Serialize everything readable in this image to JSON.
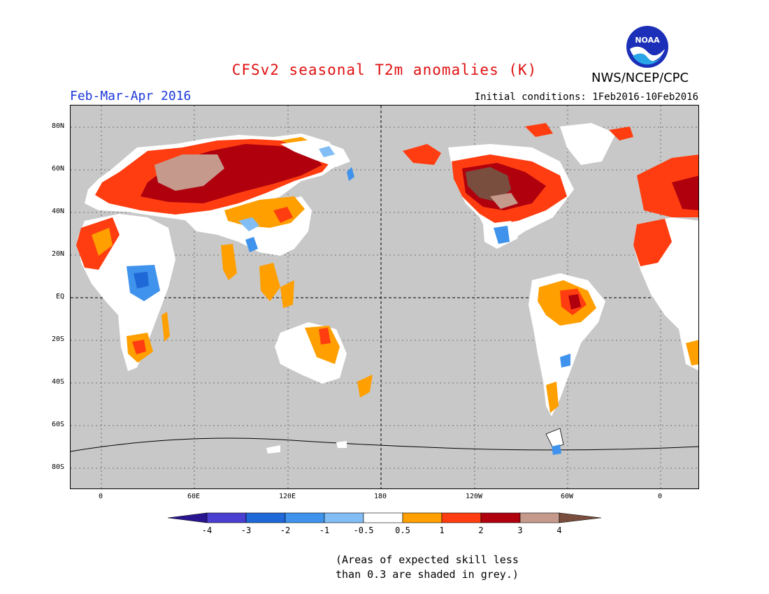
{
  "title": "CFSv2 seasonal T2m anomalies (K)",
  "agency": "NWS/NCEP/CPC",
  "logo_text": "NOAA",
  "period": "Feb-Mar-Apr 2016",
  "initial_conditions": "Initial conditions: 1Feb2016-10Feb2016",
  "lat_labels": [
    "80N",
    "60N",
    "40N",
    "20N",
    "EQ",
    "20S",
    "40S",
    "60S",
    "80S"
  ],
  "lon_labels": [
    "0",
    "60E",
    "120E",
    "180",
    "120W",
    "60W",
    "0"
  ],
  "colorbar": {
    "labels": [
      "-4",
      "-3",
      "-2",
      "-1",
      "-0.5",
      "0.5",
      "1",
      "2",
      "3",
      "4"
    ],
    "colors": [
      "#2a1590",
      "#4a3fd0",
      "#1e68d8",
      "#3f93ec",
      "#82bdf5",
      "#ffffff",
      "#ff9f00",
      "#ff3d10",
      "#b0000e",
      "#c59a8c",
      "#7a4e3e"
    ]
  },
  "footnote": [
    "(Areas of expected skill less",
    "than 0.3 are shaded in grey.)"
  ],
  "colors": {
    "skill_grey": "#c8c8c8",
    "title_red": "#e01010",
    "period_blue": "#1a38d8"
  }
}
